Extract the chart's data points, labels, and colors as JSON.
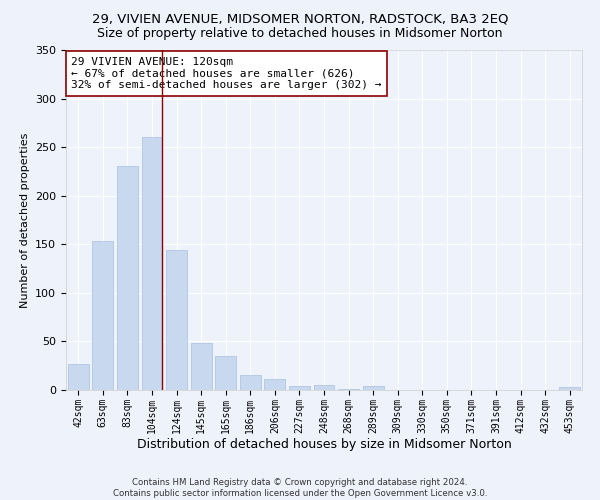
{
  "title1": "29, VIVIEN AVENUE, MIDSOMER NORTON, RADSTOCK, BA3 2EQ",
  "title2": "Size of property relative to detached houses in Midsomer Norton",
  "xlabel": "Distribution of detached houses by size in Midsomer Norton",
  "ylabel": "Number of detached properties",
  "footer": "Contains HM Land Registry data © Crown copyright and database right 2024.\nContains public sector information licensed under the Open Government Licence v3.0.",
  "categories": [
    "42sqm",
    "63sqm",
    "83sqm",
    "104sqm",
    "124sqm",
    "145sqm",
    "165sqm",
    "186sqm",
    "206sqm",
    "227sqm",
    "248sqm",
    "268sqm",
    "289sqm",
    "309sqm",
    "330sqm",
    "350sqm",
    "371sqm",
    "391sqm",
    "412sqm",
    "432sqm",
    "453sqm"
  ],
  "values": [
    27,
    153,
    231,
    260,
    144,
    48,
    35,
    15,
    11,
    4,
    5,
    1,
    4,
    0,
    0,
    0,
    0,
    0,
    0,
    0,
    3
  ],
  "bar_color": "#c8d9ef",
  "bar_edge_color": "#a8c0e0",
  "property_line_x": 3.42,
  "property_line_color": "#8b0000",
  "annotation_text": "29 VIVIEN AVENUE: 120sqm\n← 67% of detached houses are smaller (626)\n32% of semi-detached houses are larger (302) →",
  "annotation_box_color": "#ffffff",
  "annotation_box_edge_color": "#8b0000",
  "background_color": "#eef2fa",
  "grid_color": "#ffffff",
  "ylim": [
    0,
    350
  ],
  "title1_fontsize": 9.5,
  "title2_fontsize": 9,
  "annotation_fontsize": 8,
  "ylabel_fontsize": 8,
  "xlabel_fontsize": 9,
  "tick_fontsize": 7,
  "ytick_fontsize": 8
}
